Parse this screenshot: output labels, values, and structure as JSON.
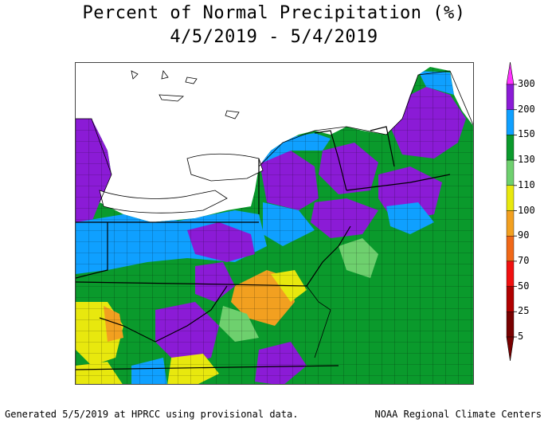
{
  "title_line1": "Percent of Normal Precipitation (%)",
  "title_line2": "4/5/2019 - 5/4/2019",
  "legend": {
    "bins": [
      {
        "label": "300",
        "color": "#ff33ff"
      },
      {
        "label": "200",
        "color": "#8b1bd6"
      },
      {
        "label": "150",
        "color": "#0fa0ff"
      },
      {
        "label": "130",
        "color": "#0a9a2c"
      },
      {
        "label": "110",
        "color": "#6ed06e"
      },
      {
        "label": "100",
        "color": "#e8e80e"
      },
      {
        "label": "90",
        "color": "#f2a020"
      },
      {
        "label": "70",
        "color": "#f06818"
      },
      {
        "label": "50",
        "color": "#f01010"
      },
      {
        "label": "25",
        "color": "#b00000"
      },
      {
        "label": "5",
        "color": "#780000"
      }
    ],
    "top_arrow_color": "#ff33ff",
    "bottom_arrow_color": "#780000"
  },
  "footer_left": "Generated 5/5/2019 at HPRCC using provisional data.",
  "footer_right": "NOAA Regional Climate Centers"
}
